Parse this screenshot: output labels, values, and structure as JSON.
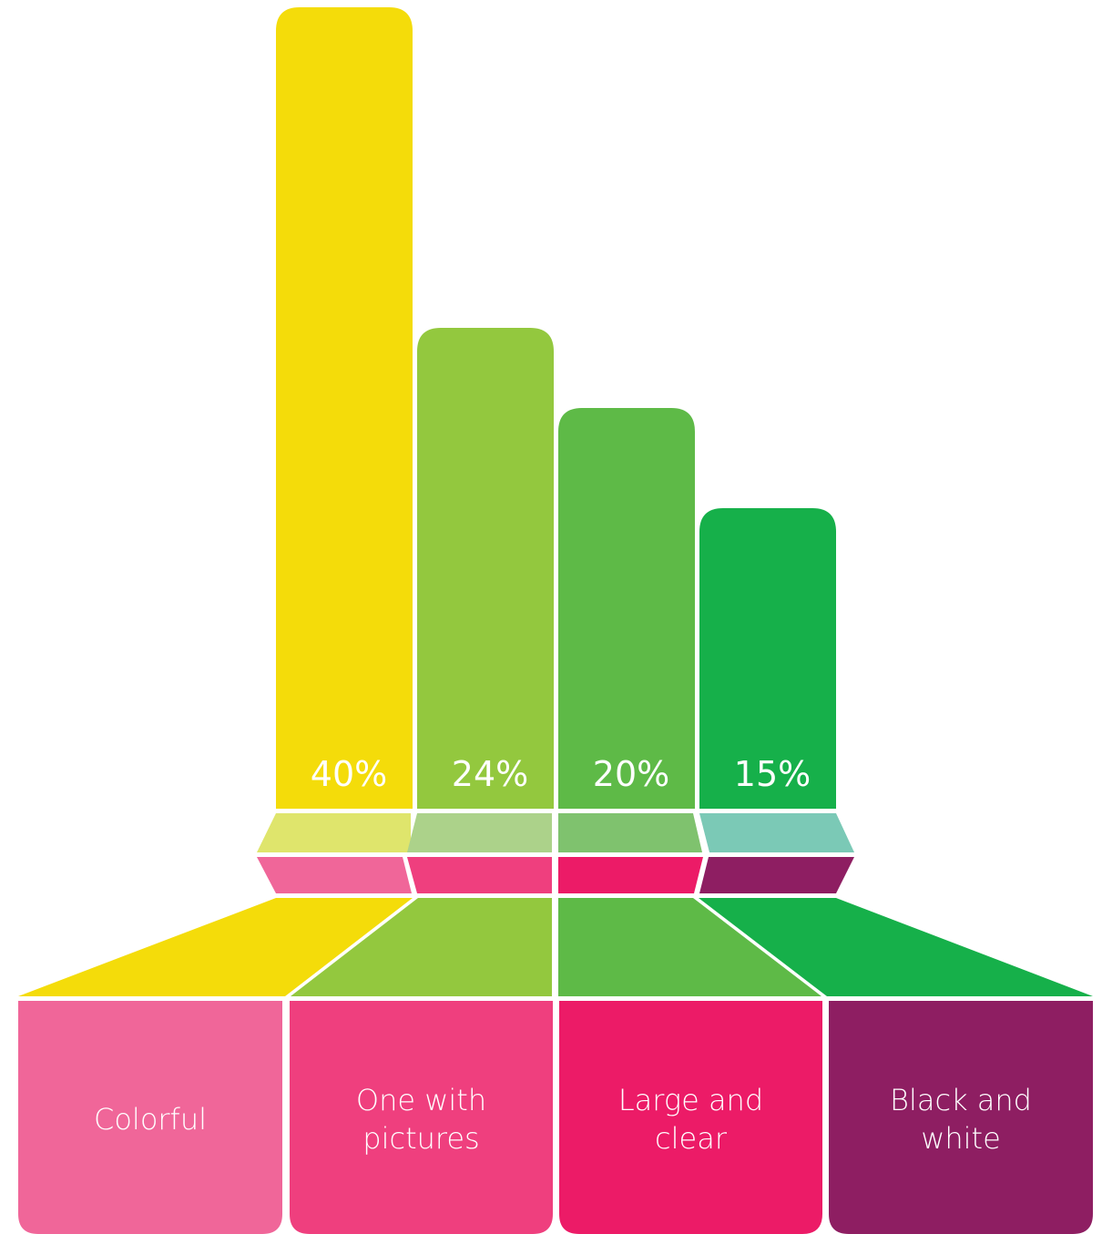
{
  "chart_data": {
    "type": "bar",
    "categories": [
      "Colorful",
      "One with pictures",
      "Large and clear",
      "Black and white"
    ],
    "category_lines": [
      [
        "Colorful"
      ],
      [
        "One with",
        "pictures"
      ],
      [
        "Large and",
        "clear"
      ],
      [
        "Black and",
        "white"
      ]
    ],
    "values": [
      40,
      24,
      20,
      15
    ],
    "value_labels": [
      "40%",
      "24%",
      "20%",
      "15%"
    ],
    "ylim": [
      0,
      40
    ],
    "grid": false,
    "legend": "none",
    "colors": {
      "bars": [
        "#f4dc0a",
        "#93c83e",
        "#5eba47",
        "#16b04a"
      ],
      "bands": [
        "#dfe56c",
        "#acd28a",
        "#7fc26e",
        "#7bc9b6"
      ],
      "accent": [
        "#f06699",
        "#ef3f7e",
        "#ec1b67",
        "#8e1e62"
      ]
    }
  }
}
